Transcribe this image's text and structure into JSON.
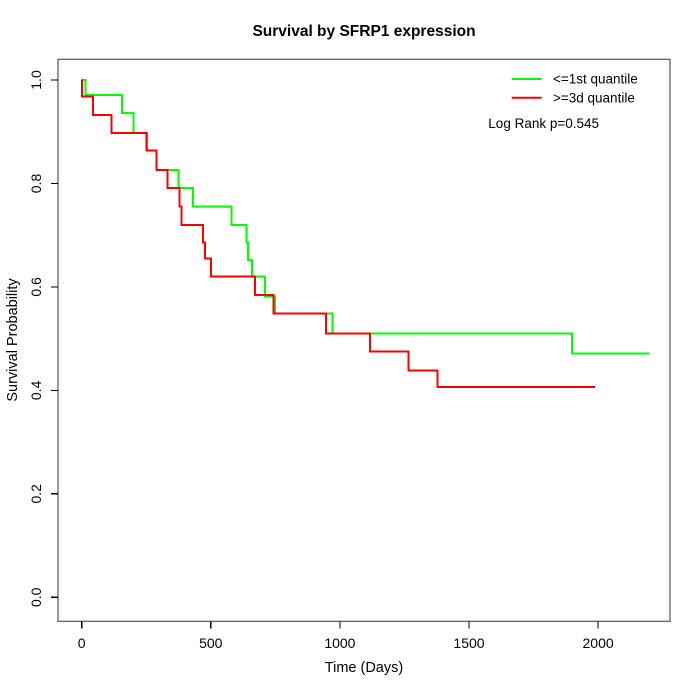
{
  "title": "Survival by SFRP1 expression",
  "xlabel": "Time (Days)",
  "ylabel": "Survival Probability",
  "legend": {
    "entries": [
      {
        "label": "<=1st quantile",
        "color": "#00ff00"
      },
      {
        "label": ">=3d quantile",
        "color": "#ff0000"
      }
    ],
    "note": "Log Rank p=0.545"
  },
  "chart_data": {
    "type": "line",
    "subtype": "kaplan-meier-step",
    "title": "Survival by SFRP1 expression",
    "xlabel": "Time (Days)",
    "ylabel": "Survival Probability",
    "xlim": [
      0,
      2280
    ],
    "ylim": [
      0.0,
      1.0
    ],
    "x_ticks": [
      0,
      500,
      1000,
      1500,
      2000
    ],
    "y_ticks": [
      0.0,
      0.2,
      0.4,
      0.6,
      0.8,
      1.0
    ],
    "grid": false,
    "legend_position": "top-right",
    "annotation": "Log Rank p=0.545",
    "series": [
      {
        "name": "<=1st quantile",
        "color": "#00ff00",
        "end_time": 2200,
        "points": [
          [
            0,
            1.0
          ],
          [
            14,
            0.971
          ],
          [
            156,
            0.936
          ],
          [
            200,
            0.898
          ],
          [
            252,
            0.864
          ],
          [
            290,
            0.826
          ],
          [
            374,
            0.791
          ],
          [
            432,
            0.755
          ],
          [
            581,
            0.72
          ],
          [
            639,
            0.686
          ],
          [
            645,
            0.652
          ],
          [
            659,
            0.62
          ],
          [
            710,
            0.581
          ],
          [
            749,
            0.549
          ],
          [
            972,
            0.51
          ],
          [
            1898,
            0.471
          ]
        ]
      },
      {
        "name": ">=3d quantile",
        "color": "#ff0000",
        "end_time": 1988,
        "points": [
          [
            0,
            1.0
          ],
          [
            2,
            0.968
          ],
          [
            43,
            0.932
          ],
          [
            116,
            0.898
          ],
          [
            250,
            0.864
          ],
          [
            290,
            0.826
          ],
          [
            332,
            0.791
          ],
          [
            378,
            0.755
          ],
          [
            387,
            0.72
          ],
          [
            469,
            0.686
          ],
          [
            478,
            0.655
          ],
          [
            500,
            0.62
          ],
          [
            671,
            0.584
          ],
          [
            742,
            0.549
          ],
          [
            946,
            0.51
          ],
          [
            1117,
            0.475
          ],
          [
            1265,
            0.438
          ],
          [
            1378,
            0.407
          ]
        ]
      }
    ]
  }
}
